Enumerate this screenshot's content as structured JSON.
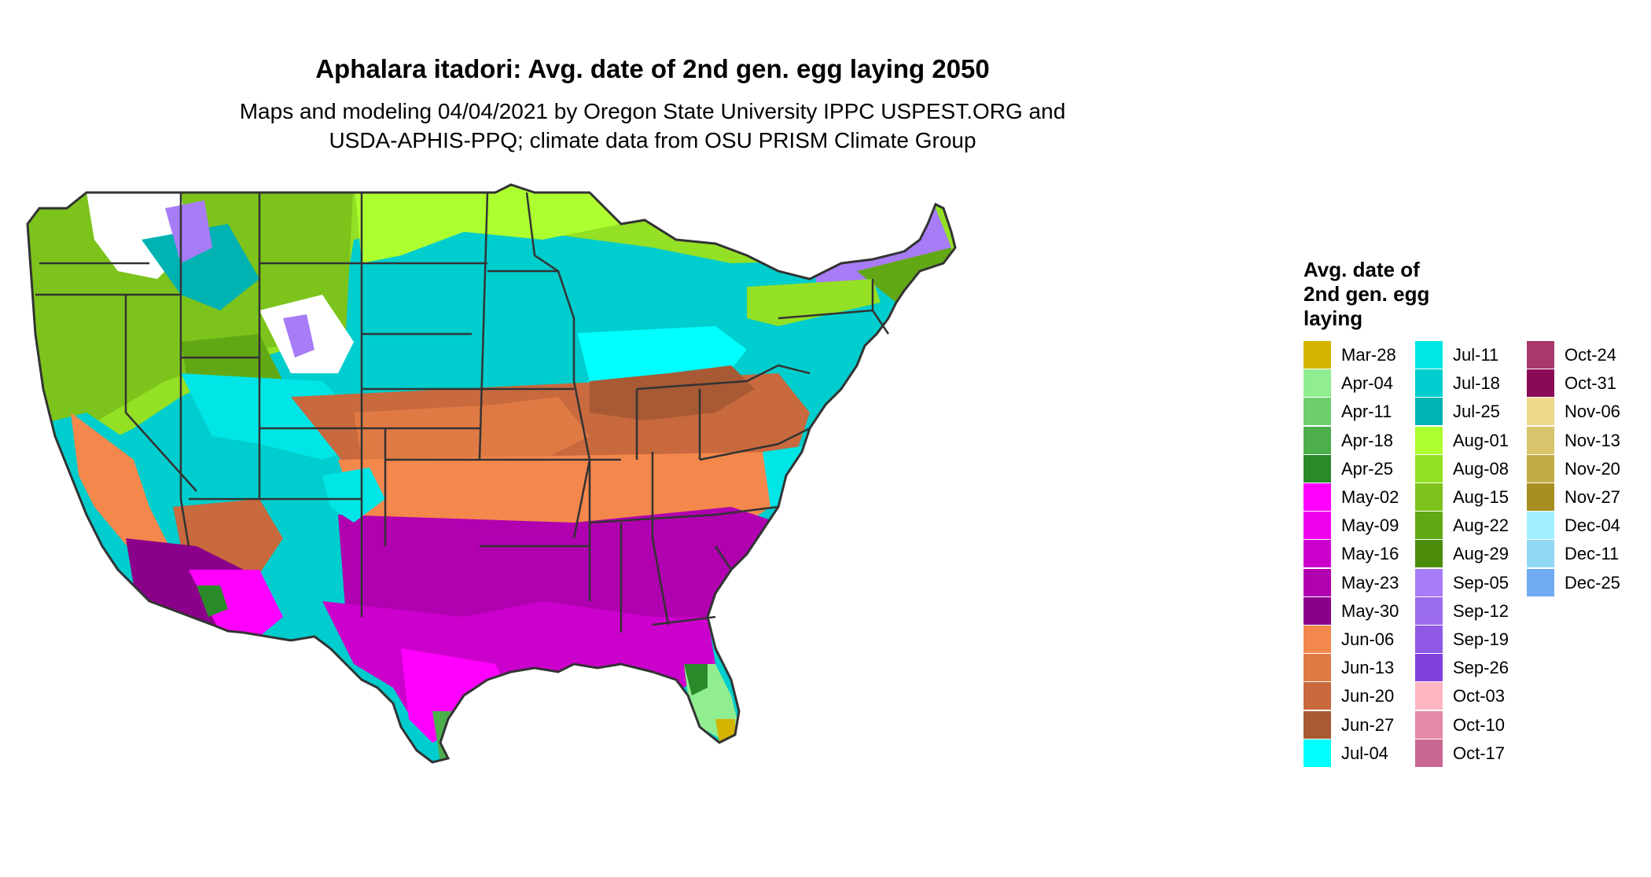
{
  "title": "Aphalara itadori: Avg. date of 2nd gen. egg laying 2050",
  "subtitle_line1": "Maps and modeling 04/04/2021 by Oregon State University IPPC USPEST.ORG and",
  "subtitle_line2": "USDA-APHIS-PPQ; climate data from OSU PRISM Climate Group",
  "legend": {
    "title_lines": [
      "Avg. date of",
      "2nd gen. egg",
      "laying"
    ],
    "columns": [
      [
        {
          "label": "Mar-28",
          "color": "#d4b400"
        },
        {
          "label": "Apr-04",
          "color": "#90ee90"
        },
        {
          "label": "Apr-11",
          "color": "#6ccf6c"
        },
        {
          "label": "Apr-18",
          "color": "#4caf4c"
        },
        {
          "label": "Apr-25",
          "color": "#2a8a2a"
        },
        {
          "label": "May-02",
          "color": "#ff00ff"
        },
        {
          "label": "May-09",
          "color": "#ee00ee"
        },
        {
          "label": "May-16",
          "color": "#cc00cc"
        },
        {
          "label": "May-23",
          "color": "#b000b0"
        },
        {
          "label": "May-30",
          "color": "#8b008b"
        },
        {
          "label": "Jun-06",
          "color": "#f4874b"
        },
        {
          "label": "Jun-13",
          "color": "#e07a45"
        },
        {
          "label": "Jun-20",
          "color": "#c8693e"
        },
        {
          "label": "Jun-27",
          "color": "#a85a34"
        },
        {
          "label": "Jul-04",
          "color": "#00ffff"
        }
      ],
      [
        {
          "label": "Jul-11",
          "color": "#00e5e5"
        },
        {
          "label": "Jul-18",
          "color": "#00cdcd"
        },
        {
          "label": "Jul-25",
          "color": "#00b2b2"
        },
        {
          "label": "Aug-01",
          "color": "#adff2f"
        },
        {
          "label": "Aug-08",
          "color": "#94e024"
        },
        {
          "label": "Aug-15",
          "color": "#7cc41c"
        },
        {
          "label": "Aug-22",
          "color": "#62a814"
        },
        {
          "label": "Aug-29",
          "color": "#4a8c0a"
        },
        {
          "label": "Sep-05",
          "color": "#a77cf7"
        },
        {
          "label": "Sep-12",
          "color": "#9b6cee"
        },
        {
          "label": "Sep-19",
          "color": "#8f58e6"
        },
        {
          "label": "Sep-26",
          "color": "#8140dc"
        },
        {
          "label": "Oct-03",
          "color": "#ffb6c1"
        },
        {
          "label": "Oct-10",
          "color": "#e48aa8"
        },
        {
          "label": "Oct-17",
          "color": "#c96692"
        }
      ],
      [
        {
          "label": "Oct-24",
          "color": "#a8386e"
        },
        {
          "label": "Oct-31",
          "color": "#8a0a55"
        },
        {
          "label": "Nov-06",
          "color": "#eed98a"
        },
        {
          "label": "Nov-13",
          "color": "#d8c46a"
        },
        {
          "label": "Nov-20",
          "color": "#c2ac48"
        },
        {
          "label": "Nov-27",
          "color": "#a98f20"
        },
        {
          "label": "Dec-04",
          "color": "#a0f0ff"
        },
        {
          "label": "Dec-11",
          "color": "#90d8f5"
        },
        {
          "label": "Dec-25",
          "color": "#70aaf0"
        }
      ]
    ]
  }
}
